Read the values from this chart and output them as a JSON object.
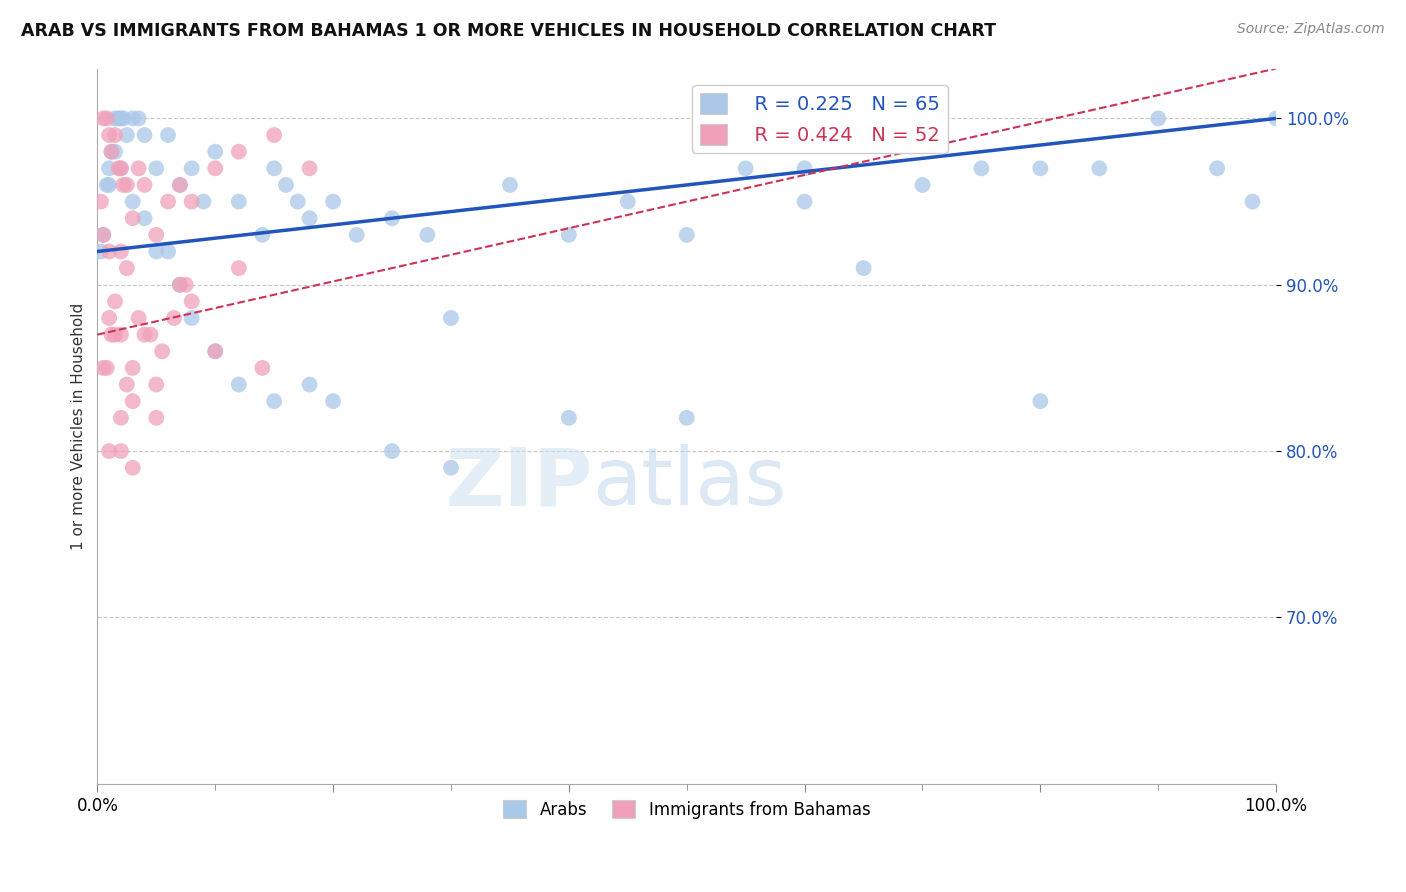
{
  "title": "ARAB VS IMMIGRANTS FROM BAHAMAS 1 OR MORE VEHICLES IN HOUSEHOLD CORRELATION CHART",
  "source": "Source: ZipAtlas.com",
  "ylabel": "1 or more Vehicles in Household",
  "xlim": [
    0,
    100
  ],
  "ylim": [
    60,
    103
  ],
  "yticks": [
    70,
    80,
    90,
    100
  ],
  "ytick_labels": [
    "70.0%",
    "80.0%",
    "90.0%",
    "100.0%"
  ],
  "legend_r_arab": "R = 0.225",
  "legend_n_arab": "N = 65",
  "legend_r_bahamas": "R = 0.424",
  "legend_n_bahamas": "N = 52",
  "arab_color": "#aac8e8",
  "bahamas_color": "#f0a0b8",
  "trendline_arab_color": "#2255bb",
  "trendline_bahamas_color": "#cc3355",
  "background_color": "#ffffff",
  "arab_x": [
    0.3,
    0.5,
    0.8,
    1.0,
    1.2,
    1.5,
    1.8,
    2.0,
    2.2,
    2.5,
    3.0,
    3.5,
    4.0,
    5.0,
    6.0,
    7.0,
    8.0,
    9.0,
    10.0,
    12.0,
    14.0,
    15.0,
    16.0,
    17.0,
    18.0,
    20.0,
    22.0,
    25.0,
    28.0,
    30.0,
    35.0,
    40.0,
    45.0,
    50.0,
    55.0,
    60.0,
    65.0,
    70.0,
    75.0,
    80.0,
    85.0,
    90.0,
    95.0,
    98.0,
    1.0,
    1.5,
    2.0,
    3.0,
    4.0,
    5.0,
    6.0,
    7.0,
    8.0,
    10.0,
    12.0,
    15.0,
    18.0,
    20.0,
    25.0,
    30.0,
    40.0,
    50.0,
    60.0,
    80.0,
    100.0
  ],
  "arab_y": [
    92,
    93,
    96,
    97,
    98,
    100,
    100,
    100,
    100,
    99,
    100,
    100,
    99,
    97,
    99,
    96,
    97,
    95,
    98,
    95,
    93,
    97,
    96,
    95,
    94,
    95,
    93,
    94,
    93,
    88,
    96,
    93,
    95,
    93,
    97,
    97,
    91,
    96,
    97,
    97,
    97,
    100,
    97,
    95,
    96,
    98,
    97,
    95,
    94,
    92,
    92,
    90,
    88,
    86,
    84,
    83,
    84,
    83,
    80,
    79,
    82,
    82,
    95,
    83,
    100
  ],
  "bahamas_x": [
    0.3,
    0.5,
    0.8,
    1.0,
    1.2,
    1.5,
    1.8,
    2.0,
    2.2,
    2.5,
    3.0,
    3.5,
    4.0,
    5.0,
    6.0,
    7.0,
    8.0,
    10.0,
    12.0,
    15.0,
    18.0,
    0.5,
    1.0,
    1.5,
    2.0,
    2.5,
    3.0,
    4.0,
    5.0,
    6.5,
    8.0,
    1.0,
    2.0,
    3.5,
    5.5,
    0.5,
    1.2,
    2.0,
    3.0,
    0.8,
    1.5,
    2.5,
    4.5,
    7.5,
    10.0,
    14.0,
    1.0,
    2.0,
    3.0,
    5.0,
    7.0,
    12.0
  ],
  "bahamas_y": [
    95,
    100,
    100,
    99,
    98,
    99,
    97,
    97,
    96,
    96,
    94,
    97,
    96,
    93,
    95,
    96,
    95,
    97,
    98,
    99,
    97,
    93,
    92,
    89,
    92,
    91,
    85,
    87,
    84,
    88,
    89,
    88,
    82,
    88,
    86,
    85,
    87,
    87,
    83,
    85,
    87,
    84,
    87,
    90,
    86,
    85,
    80,
    80,
    79,
    82,
    90,
    91
  ]
}
